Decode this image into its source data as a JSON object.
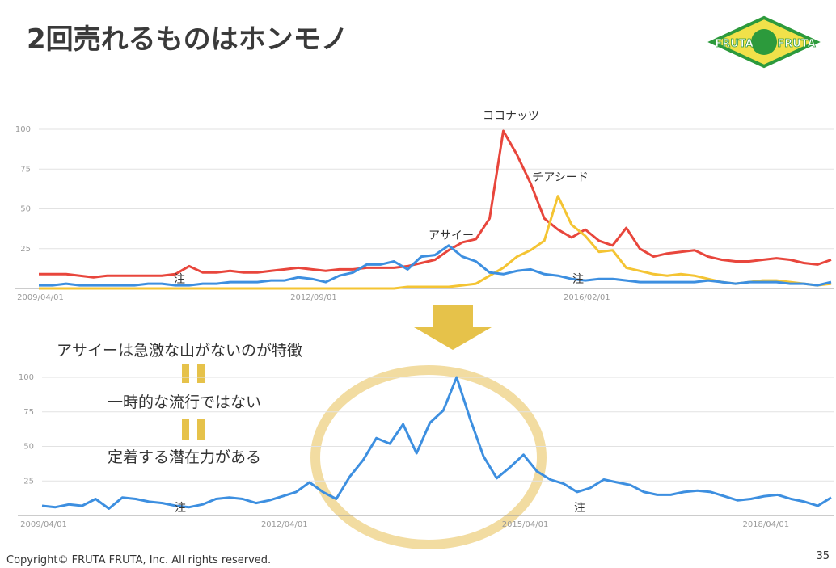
{
  "header": {
    "title": "2回売れるものはホンモノ"
  },
  "logo": [
    "FRUTA",
    "FRUTA"
  ],
  "chart_data": [
    {
      "type": "line",
      "categories": [
        "2009/04/01",
        null,
        null,
        null,
        null,
        null,
        null,
        null,
        null,
        null,
        null,
        null,
        null,
        null,
        null,
        null,
        null,
        null,
        null,
        null,
        "2012/09/01",
        null,
        null,
        null,
        null,
        null,
        null,
        null,
        null,
        null,
        null,
        null,
        null,
        null,
        null,
        null,
        null,
        null,
        null,
        null,
        "2016/02/01",
        null,
        null,
        null,
        null,
        null,
        null,
        null,
        null,
        null,
        null,
        null,
        null,
        null,
        null,
        null,
        null,
        null,
        null
      ],
      "series": [
        {
          "name": "ココナッツ",
          "color": "#e8463c",
          "values": [
            9,
            9,
            9,
            8,
            7,
            8,
            8,
            8,
            8,
            8,
            9,
            14,
            10,
            10,
            11,
            10,
            10,
            11,
            12,
            13,
            12,
            11,
            12,
            12,
            13,
            13,
            13,
            14,
            16,
            18,
            24,
            29,
            31,
            44,
            99,
            84,
            66,
            44,
            37,
            32,
            37,
            30,
            27,
            38,
            25,
            20,
            22,
            23,
            24,
            20,
            18,
            17,
            17,
            18,
            19,
            18,
            16,
            15,
            18
          ]
        },
        {
          "name": "チアシード",
          "color": "#f4c433",
          "values": [
            0,
            0,
            0,
            0,
            0,
            0,
            0,
            0,
            0,
            0,
            0,
            0,
            0,
            0,
            0,
            0,
            0,
            0,
            0,
            0,
            0,
            0,
            0,
            0,
            0,
            0,
            0,
            1,
            1,
            1,
            1,
            2,
            3,
            8,
            13,
            20,
            24,
            30,
            58,
            40,
            33,
            23,
            24,
            13,
            11,
            9,
            8,
            9,
            8,
            6,
            4,
            3,
            4,
            5,
            5,
            4,
            3,
            2,
            3
          ]
        },
        {
          "name": "アサイー",
          "color": "#3d8fe0",
          "values": [
            2,
            2,
            3,
            2,
            2,
            2,
            2,
            2,
            3,
            3,
            2,
            2,
            3,
            3,
            4,
            4,
            4,
            5,
            5,
            7,
            6,
            4,
            8,
            10,
            15,
            15,
            17,
            12,
            20,
            21,
            27,
            20,
            17,
            10,
            9,
            11,
            12,
            9,
            8,
            6,
            5,
            6,
            6,
            5,
            4,
            4,
            4,
            4,
            4,
            5,
            4,
            3,
            4,
            4,
            4,
            3,
            3,
            2,
            4
          ]
        }
      ],
      "ylim": [
        0,
        100
      ],
      "yticks": [
        25,
        50,
        75,
        100
      ],
      "grid": true,
      "annotations": [
        "ココナッツ",
        "チアシード",
        "アサイー",
        "注",
        "注"
      ]
    },
    {
      "type": "line",
      "categories": [
        "2009/04/01",
        null,
        null,
        null,
        null,
        null,
        null,
        null,
        null,
        null,
        null,
        null,
        null,
        null,
        null,
        null,
        null,
        null,
        "2012/04/01",
        null,
        null,
        null,
        null,
        null,
        null,
        null,
        null,
        null,
        null,
        null,
        null,
        null,
        null,
        null,
        null,
        null,
        "2015/04/01",
        null,
        null,
        null,
        null,
        null,
        null,
        null,
        null,
        null,
        null,
        null,
        null,
        null,
        null,
        null,
        null,
        null,
        "2018/04/01",
        null,
        null,
        null,
        null,
        null
      ],
      "series": [
        {
          "name": "アサイー",
          "color": "#3d8fe0",
          "values": [
            7,
            6,
            8,
            7,
            12,
            5,
            13,
            12,
            10,
            9,
            7,
            6,
            8,
            12,
            13,
            12,
            9,
            11,
            14,
            17,
            24,
            17,
            12,
            28,
            40,
            56,
            52,
            66,
            45,
            67,
            76,
            100,
            70,
            43,
            27,
            35,
            44,
            32,
            26,
            23,
            17,
            20,
            26,
            24,
            22,
            17,
            15,
            15,
            17,
            18,
            17,
            14,
            11,
            12,
            14,
            15,
            12,
            10,
            7,
            13
          ]
        }
      ],
      "ylim": [
        0,
        100
      ],
      "yticks": [
        25,
        50,
        75,
        100
      ],
      "grid": true,
      "annotations": [
        "注",
        "注"
      ]
    }
  ],
  "notes": [
    "アサイーは急激な山がないのが特徴",
    "一時的な流行ではない",
    "定着する潜在力がある"
  ],
  "footer": {
    "copyright": "Copyright© FRUTA FRUTA, Inc. All rights reserved.",
    "page": 35
  }
}
